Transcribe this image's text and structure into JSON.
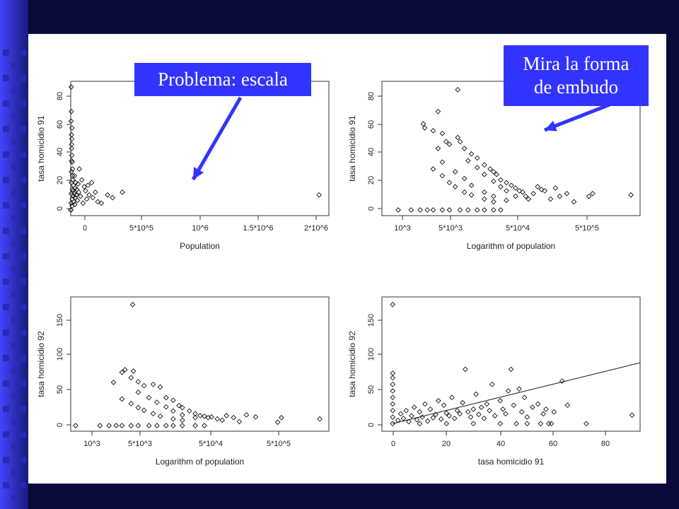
{
  "slide": {
    "background_color": "#0a0a3a",
    "accent_color": "#3333ff"
  },
  "callouts": {
    "scale": "Problema: escala",
    "funnel_line1": "Mira la forma",
    "funnel_line2": "de embudo"
  },
  "chart_data": [
    {
      "type": "scatter",
      "title": "",
      "xlabel": "Population",
      "ylabel": "tasa homicidio 91",
      "x_tick_labels": [
        "0",
        "5*10^5",
        "10^6",
        "1.5*10^6",
        "2*10^6"
      ],
      "y_tick_labels": [
        "0",
        "20",
        "40",
        "60",
        "80"
      ],
      "xlim": [
        0,
        2100000
      ],
      "ylim": [
        0,
        90
      ],
      "points": [
        [
          1000,
          0
        ],
        [
          2000,
          0
        ],
        [
          3000,
          5
        ],
        [
          4000,
          12
        ],
        [
          5000,
          20
        ],
        [
          6000,
          28
        ],
        [
          7000,
          36
        ],
        [
          8000,
          45
        ],
        [
          9000,
          52
        ],
        [
          10000,
          60
        ],
        [
          11000,
          3
        ],
        [
          12000,
          8
        ],
        [
          13000,
          15
        ],
        [
          14000,
          25
        ],
        [
          15000,
          30
        ],
        [
          16000,
          22
        ],
        [
          18000,
          14
        ],
        [
          20000,
          10
        ],
        [
          22000,
          18
        ],
        [
          25000,
          6
        ],
        [
          28000,
          12
        ],
        [
          30000,
          25
        ],
        [
          33000,
          4
        ],
        [
          35000,
          16
        ],
        [
          38000,
          9
        ],
        [
          40000,
          20
        ],
        [
          45000,
          11
        ],
        [
          50000,
          15
        ],
        [
          55000,
          7
        ],
        [
          60000,
          19
        ],
        [
          65000,
          13
        ],
        [
          70000,
          30
        ],
        [
          80000,
          10
        ],
        [
          90000,
          22
        ],
        [
          100000,
          5
        ],
        [
          110000,
          17
        ],
        [
          120000,
          14
        ],
        [
          130000,
          8
        ],
        [
          140000,
          18
        ],
        [
          150000,
          11
        ],
        [
          170000,
          20
        ],
        [
          180000,
          9
        ],
        [
          200000,
          13
        ],
        [
          220000,
          6
        ],
        [
          250000,
          5
        ],
        [
          4000,
          90
        ],
        [
          5000,
          72
        ],
        [
          3000,
          65
        ],
        [
          6000,
          55
        ],
        [
          7000,
          48
        ],
        [
          9000,
          40
        ],
        [
          12000,
          35
        ],
        [
          300000,
          11
        ],
        [
          340000,
          9
        ],
        [
          420000,
          13
        ],
        [
          2020000,
          11
        ]
      ]
    },
    {
      "type": "scatter",
      "title": "",
      "xlabel": "Logarithm of population",
      "ylabel": "tasa homicidio 91",
      "x_scale": "log",
      "x_tick_labels": [
        "10^3",
        "5*10^3",
        "5*10^4",
        "5*10^5"
      ],
      "y_tick_labels": [
        "0",
        "20",
        "40",
        "60",
        "80"
      ],
      "xlim": [
        600,
        2000000
      ],
      "ylim": [
        0,
        90
      ],
      "points": [
        [
          1000,
          0
        ],
        [
          1500,
          0
        ],
        [
          2000,
          0
        ],
        [
          2500,
          0
        ],
        [
          3000,
          0
        ],
        [
          4000,
          0
        ],
        [
          5000,
          0
        ],
        [
          7000,
          0
        ],
        [
          9000,
          0
        ],
        [
          12000,
          0
        ],
        [
          15000,
          0
        ],
        [
          20000,
          0
        ],
        [
          25000,
          0
        ],
        [
          2200,
          63
        ],
        [
          2300,
          60
        ],
        [
          3000,
          58
        ],
        [
          4000,
          56
        ],
        [
          4500,
          50
        ],
        [
          5000,
          48
        ],
        [
          3500,
          45
        ],
        [
          6500,
          53
        ],
        [
          7000,
          50
        ],
        [
          8000,
          45
        ],
        [
          10000,
          41
        ],
        [
          12000,
          38
        ],
        [
          15000,
          33
        ],
        [
          18000,
          30
        ],
        [
          20000,
          28
        ],
        [
          22000,
          26
        ],
        [
          25000,
          22
        ],
        [
          30000,
          20
        ],
        [
          35000,
          18
        ],
        [
          40000,
          16
        ],
        [
          45000,
          14
        ],
        [
          50000,
          13
        ],
        [
          55000,
          10
        ],
        [
          60000,
          8
        ],
        [
          70000,
          12
        ],
        [
          80000,
          17
        ],
        [
          90000,
          15
        ],
        [
          100000,
          14
        ],
        [
          120000,
          8
        ],
        [
          140000,
          16
        ],
        [
          160000,
          10
        ],
        [
          200000,
          12
        ],
        [
          250000,
          6
        ],
        [
          400000,
          10
        ],
        [
          450000,
          12
        ],
        [
          1500000,
          11
        ],
        [
          3500,
          72
        ],
        [
          6500,
          88
        ],
        [
          3000,
          30
        ],
        [
          4000,
          25
        ],
        [
          5000,
          20
        ],
        [
          6000,
          17
        ],
        [
          8000,
          13
        ],
        [
          10000,
          11
        ],
        [
          15000,
          8
        ],
        [
          20000,
          6
        ],
        [
          4000,
          35
        ],
        [
          6000,
          28
        ],
        [
          8000,
          23
        ],
        [
          10000,
          18
        ],
        [
          15000,
          13
        ],
        [
          20000,
          10
        ],
        [
          30000,
          7
        ],
        [
          9000,
          36
        ],
        [
          12000,
          31
        ],
        [
          15000,
          26
        ],
        [
          20000,
          21
        ],
        [
          25000,
          17
        ],
        [
          30000,
          14
        ],
        [
          40000,
          10
        ]
      ]
    },
    {
      "type": "scatter",
      "title": "",
      "xlabel": "Logarithm of population",
      "ylabel": "tasa homicidio 92",
      "x_scale": "log",
      "x_tick_labels": [
        "10^3",
        "5*10^3",
        "5*10^4",
        "5*10^5"
      ],
      "y_tick_labels": [
        "0",
        "50",
        "100",
        "150"
      ],
      "xlim": [
        600,
        2000000
      ],
      "ylim": [
        0,
        185
      ],
      "points": [
        [
          700,
          0
        ],
        [
          1500,
          0
        ],
        [
          2000,
          0
        ],
        [
          2500,
          0
        ],
        [
          3000,
          0
        ],
        [
          4000,
          0
        ],
        [
          5000,
          0
        ],
        [
          7000,
          0
        ],
        [
          9000,
          0
        ],
        [
          12000,
          0
        ],
        [
          15000,
          0
        ],
        [
          20000,
          0
        ],
        [
          30000,
          0
        ],
        [
          40000,
          0
        ],
        [
          2300,
          65
        ],
        [
          3000,
          80
        ],
        [
          3300,
          84
        ],
        [
          4300,
          82
        ],
        [
          4000,
          72
        ],
        [
          5000,
          66
        ],
        [
          6000,
          60
        ],
        [
          8000,
          62
        ],
        [
          10000,
          58
        ],
        [
          12000,
          42
        ],
        [
          15000,
          38
        ],
        [
          18000,
          30
        ],
        [
          20000,
          27
        ],
        [
          25000,
          22
        ],
        [
          30000,
          18
        ],
        [
          35000,
          15
        ],
        [
          40000,
          14
        ],
        [
          45000,
          12
        ],
        [
          50000,
          13
        ],
        [
          60000,
          10
        ],
        [
          70000,
          8
        ],
        [
          80000,
          15
        ],
        [
          100000,
          12
        ],
        [
          120000,
          6
        ],
        [
          150000,
          16
        ],
        [
          200000,
          13
        ],
        [
          400000,
          5
        ],
        [
          450000,
          12
        ],
        [
          1500000,
          10
        ],
        [
          4200,
          182
        ],
        [
          3000,
          40
        ],
        [
          4000,
          33
        ],
        [
          5000,
          27
        ],
        [
          6000,
          23
        ],
        [
          8000,
          18
        ],
        [
          10000,
          14
        ],
        [
          15000,
          10
        ],
        [
          20000,
          8
        ],
        [
          5000,
          50
        ],
        [
          7000,
          42
        ],
        [
          9000,
          35
        ],
        [
          12000,
          28
        ],
        [
          15000,
          22
        ],
        [
          20000,
          16
        ],
        [
          30000,
          12
        ]
      ]
    },
    {
      "type": "scatter",
      "title": "",
      "xlabel": "tasa homicidio 91",
      "ylabel": "tasa homicidio 92",
      "x_tick_labels": [
        "0",
        "20",
        "40",
        "60",
        "80"
      ],
      "y_tick_labels": [
        "0",
        "50",
        "100",
        "150"
      ],
      "xlim": [
        -4,
        92
      ],
      "ylim": [
        -3,
        185
      ],
      "regression_line": {
        "x": [
          0,
          92
        ],
        "y": [
          0,
          93
        ]
      },
      "points": [
        [
          0,
          0
        ],
        [
          0,
          10
        ],
        [
          0,
          20
        ],
        [
          0,
          30
        ],
        [
          0,
          40
        ],
        [
          0,
          50
        ],
        [
          0,
          60
        ],
        [
          0,
          70
        ],
        [
          0,
          77
        ],
        [
          0,
          182
        ],
        [
          2,
          5
        ],
        [
          3,
          15
        ],
        [
          4,
          8
        ],
        [
          5,
          20
        ],
        [
          6,
          3
        ],
        [
          7,
          12
        ],
        [
          8,
          25
        ],
        [
          9,
          6
        ],
        [
          10,
          18
        ],
        [
          11,
          10
        ],
        [
          12,
          30
        ],
        [
          13,
          4
        ],
        [
          14,
          22
        ],
        [
          15,
          9
        ],
        [
          16,
          14
        ],
        [
          17,
          35
        ],
        [
          18,
          7
        ],
        [
          19,
          28
        ],
        [
          20,
          16
        ],
        [
          21,
          12
        ],
        [
          22,
          40
        ],
        [
          23,
          8
        ],
        [
          24,
          20
        ],
        [
          25,
          15
        ],
        [
          26,
          32
        ],
        [
          27,
          83
        ],
        [
          28,
          18
        ],
        [
          29,
          10
        ],
        [
          30,
          22
        ],
        [
          31,
          45
        ],
        [
          32,
          14
        ],
        [
          33,
          25
        ],
        [
          34,
          8
        ],
        [
          35,
          30
        ],
        [
          36,
          20
        ],
        [
          37,
          60
        ],
        [
          38,
          12
        ],
        [
          40,
          35
        ],
        [
          41,
          22
        ],
        [
          42,
          15
        ],
        [
          43,
          50
        ],
        [
          44,
          83
        ],
        [
          45,
          28
        ],
        [
          46,
          0
        ],
        [
          47,
          53
        ],
        [
          48,
          18
        ],
        [
          49,
          40
        ],
        [
          50,
          10
        ],
        [
          52,
          25
        ],
        [
          54,
          30
        ],
        [
          55,
          0
        ],
        [
          56,
          15
        ],
        [
          57,
          22
        ],
        [
          59,
          0
        ],
        [
          60,
          18
        ],
        [
          63,
          65
        ],
        [
          65,
          28
        ],
        [
          72,
          0
        ],
        [
          89,
          13
        ],
        [
          10,
          0
        ],
        [
          20,
          0
        ],
        [
          30,
          0
        ],
        [
          40,
          0
        ],
        [
          50,
          0
        ],
        [
          58,
          0
        ]
      ]
    }
  ]
}
